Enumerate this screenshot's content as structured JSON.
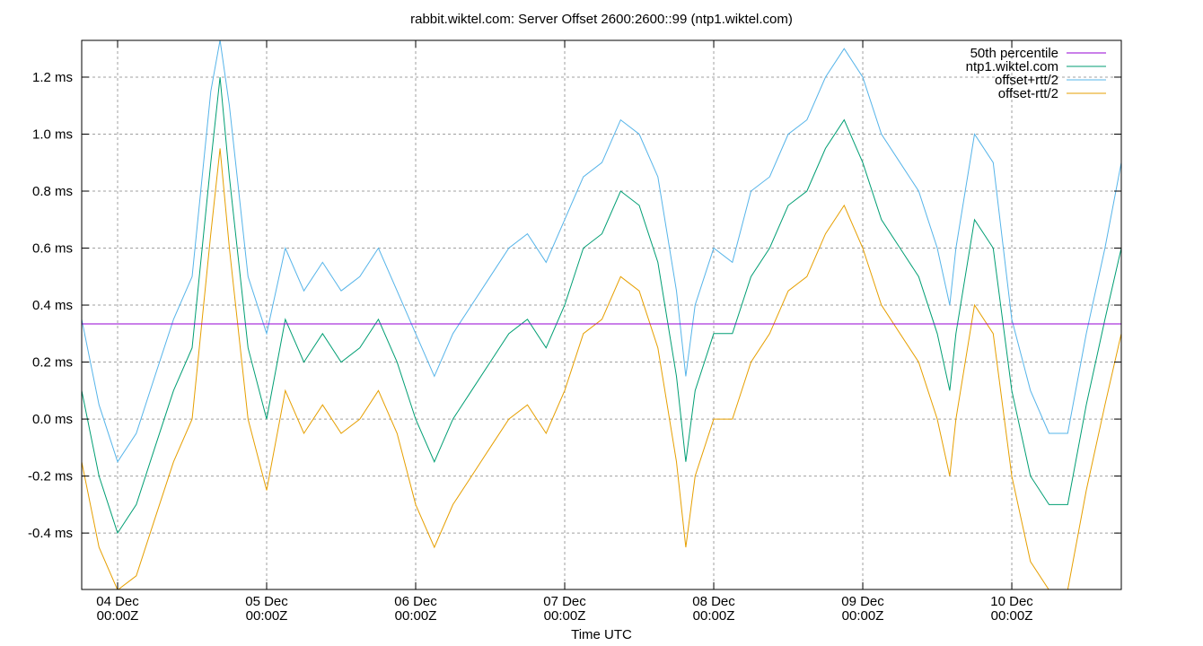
{
  "chart_data": {
    "type": "line",
    "title": "rabbit.wiktel.com: Server Offset 2600:2600::99 (ntp1.wiktel.com)",
    "xlabel": "Time UTC",
    "ylabel": "",
    "xlim": [
      "03 Dec 18:13",
      "10 Dec 17:38"
    ],
    "ylim": [
      -0.598,
      1.329
    ],
    "grid": true,
    "legend_position": "top-right",
    "y_ticks": [
      {
        "value": -0.4,
        "label": "-0.4 ms"
      },
      {
        "value": -0.2,
        "label": "-0.2 ms"
      },
      {
        "value": 0.0,
        "label": "0.0 ms"
      },
      {
        "value": 0.2,
        "label": "0.2 ms"
      },
      {
        "value": 0.4,
        "label": "0.4 ms"
      },
      {
        "value": 0.6,
        "label": "0.6 ms"
      },
      {
        "value": 0.8,
        "label": "0.8 ms"
      },
      {
        "value": 1.0,
        "label": "1.0 ms"
      },
      {
        "value": 1.2,
        "label": "1.2 ms"
      }
    ],
    "x_ticks": [
      {
        "value": "04 Dec 00:00",
        "line1": "04 Dec",
        "line2": "00:00Z"
      },
      {
        "value": "05 Dec 00:00",
        "line1": "05 Dec",
        "line2": "00:00Z"
      },
      {
        "value": "06 Dec 00:00",
        "line1": "06 Dec",
        "line2": "00:00Z"
      },
      {
        "value": "07 Dec 00:00",
        "line1": "07 Dec",
        "line2": "00:00Z"
      },
      {
        "value": "08 Dec 00:00",
        "line1": "08 Dec",
        "line2": "00:00Z"
      },
      {
        "value": "09 Dec 00:00",
        "line1": "09 Dec",
        "line2": "00:00Z"
      },
      {
        "value": "10 Dec 00:00",
        "line1": "10 Dec",
        "line2": "00:00Z"
      }
    ],
    "x": [
      "03 Dec 18:13",
      "03 Dec 21:00",
      "04 Dec 00:00",
      "04 Dec 03:00",
      "04 Dec 06:00",
      "04 Dec 09:00",
      "04 Dec 12:00",
      "04 Dec 15:00",
      "04 Dec 16:30",
      "04 Dec 18:00",
      "04 Dec 21:00",
      "05 Dec 00:00",
      "05 Dec 03:00",
      "05 Dec 06:00",
      "05 Dec 09:00",
      "05 Dec 12:00",
      "05 Dec 15:00",
      "05 Dec 18:00",
      "05 Dec 21:00",
      "06 Dec 00:00",
      "06 Dec 03:00",
      "06 Dec 06:00",
      "06 Dec 09:00",
      "06 Dec 12:00",
      "06 Dec 15:00",
      "06 Dec 18:00",
      "06 Dec 21:00",
      "07 Dec 00:00",
      "07 Dec 03:00",
      "07 Dec 06:00",
      "07 Dec 09:00",
      "07 Dec 12:00",
      "07 Dec 15:00",
      "07 Dec 18:00",
      "07 Dec 19:30",
      "07 Dec 21:00",
      "08 Dec 00:00",
      "08 Dec 03:00",
      "08 Dec 06:00",
      "08 Dec 09:00",
      "08 Dec 12:00",
      "08 Dec 15:00",
      "08 Dec 18:00",
      "08 Dec 21:00",
      "09 Dec 00:00",
      "09 Dec 03:00",
      "09 Dec 06:00",
      "09 Dec 09:00",
      "09 Dec 12:00",
      "09 Dec 14:00",
      "09 Dec 15:00",
      "09 Dec 18:00",
      "09 Dec 21:00",
      "10 Dec 00:00",
      "10 Dec 03:00",
      "10 Dec 06:00",
      "10 Dec 09:00",
      "10 Dec 12:00",
      "10 Dec 15:00",
      "10 Dec 17:38"
    ],
    "series": [
      {
        "name": "50th percentile",
        "color": "#9400d3",
        "constant": 0.334
      },
      {
        "name": "ntp1.wiktel.com",
        "color": "#009e73",
        "values": [
          0.1,
          -0.2,
          -0.4,
          -0.3,
          -0.1,
          0.1,
          0.25,
          0.9,
          1.2,
          0.85,
          0.25,
          0.0,
          0.35,
          0.2,
          0.3,
          0.2,
          0.25,
          0.35,
          0.2,
          0.0,
          -0.15,
          0.0,
          0.1,
          0.2,
          0.3,
          0.35,
          0.25,
          0.4,
          0.6,
          0.65,
          0.8,
          0.75,
          0.55,
          0.15,
          -0.15,
          0.1,
          0.3,
          0.3,
          0.5,
          0.6,
          0.75,
          0.8,
          0.95,
          1.05,
          0.9,
          0.7,
          0.6,
          0.5,
          0.3,
          0.1,
          0.3,
          0.7,
          0.6,
          0.1,
          -0.2,
          -0.3,
          -0.3,
          0.05,
          0.35,
          0.6
        ]
      },
      {
        "name": "offset+rtt/2",
        "color": "#56b4e9",
        "values": [
          0.35,
          0.05,
          -0.15,
          -0.05,
          0.15,
          0.35,
          0.5,
          1.15,
          1.33,
          1.1,
          0.5,
          0.3,
          0.6,
          0.45,
          0.55,
          0.45,
          0.5,
          0.6,
          0.45,
          0.3,
          0.15,
          0.3,
          0.4,
          0.5,
          0.6,
          0.65,
          0.55,
          0.7,
          0.85,
          0.9,
          1.05,
          1.0,
          0.85,
          0.45,
          0.15,
          0.4,
          0.6,
          0.55,
          0.8,
          0.85,
          1.0,
          1.05,
          1.2,
          1.3,
          1.2,
          1.0,
          0.9,
          0.8,
          0.6,
          0.4,
          0.6,
          1.0,
          0.9,
          0.35,
          0.1,
          -0.05,
          -0.05,
          0.3,
          0.6,
          0.9
        ]
      },
      {
        "name": "offset-rtt/2",
        "color": "#e69f00",
        "values": [
          -0.15,
          -0.45,
          -0.6,
          -0.55,
          -0.35,
          -0.15,
          0.0,
          0.65,
          0.95,
          0.6,
          0.0,
          -0.25,
          0.1,
          -0.05,
          0.05,
          -0.05,
          0.0,
          0.1,
          -0.05,
          -0.3,
          -0.45,
          -0.3,
          -0.2,
          -0.1,
          0.0,
          0.05,
          -0.05,
          0.1,
          0.3,
          0.35,
          0.5,
          0.45,
          0.25,
          -0.15,
          -0.45,
          -0.2,
          0.0,
          0.0,
          0.2,
          0.3,
          0.45,
          0.5,
          0.65,
          0.75,
          0.6,
          0.4,
          0.3,
          0.2,
          0.0,
          -0.2,
          0.0,
          0.4,
          0.3,
          -0.2,
          -0.5,
          -0.6,
          -0.6,
          -0.25,
          0.05,
          0.3
        ]
      }
    ]
  }
}
